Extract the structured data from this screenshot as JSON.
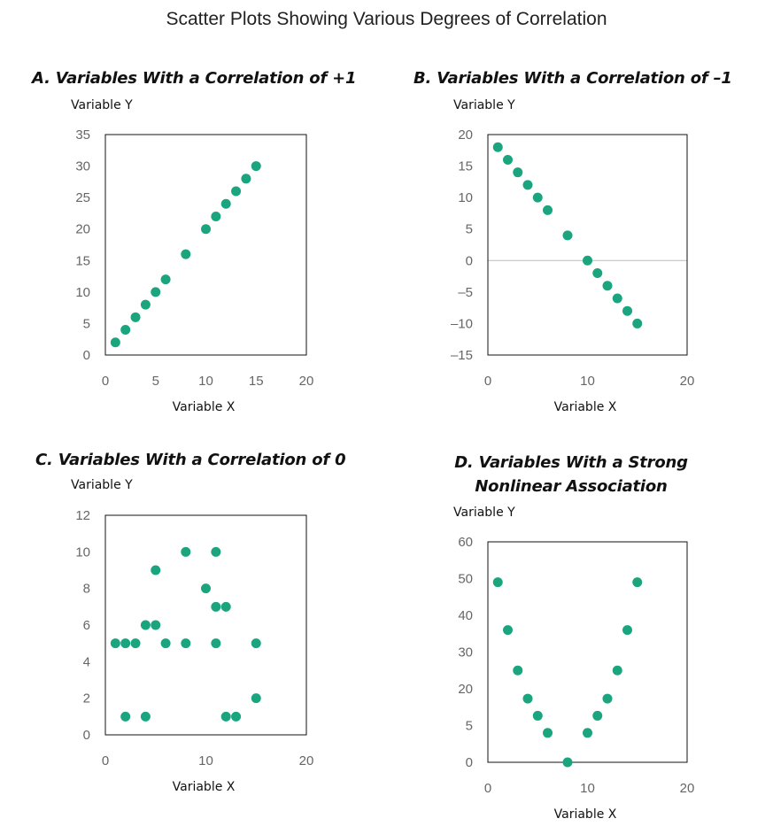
{
  "title": "Scatter Plots Showing Various Degrees of Correlation",
  "colors": {
    "point": "#1aa57f",
    "frame": "#111111",
    "zero_line": "#bbbbbb",
    "tick_text": "#666666"
  },
  "chart_data": [
    {
      "type": "scatter",
      "title": "A. Variables With a Correlation of +1",
      "xlabel": "Variable X",
      "ylabel": "Variable Y",
      "xlim": [
        0,
        20
      ],
      "ylim": [
        0,
        35
      ],
      "xticks": [
        0,
        5,
        10,
        15,
        20
      ],
      "yticks": [
        0,
        5,
        10,
        15,
        20,
        25,
        30,
        35
      ],
      "ytick_labels": [
        "0",
        "5",
        "10",
        "15",
        "20",
        "25",
        "30",
        "35"
      ],
      "x": [
        1,
        2,
        3,
        4,
        5,
        6,
        8,
        10,
        11,
        12,
        13,
        14,
        15
      ],
      "y": [
        2,
        4,
        6,
        8,
        10,
        12,
        16,
        20,
        22,
        24,
        26,
        28,
        30
      ]
    },
    {
      "type": "scatter",
      "title": "B. Variables With a Correlation of –1",
      "xlabel": "Variable X",
      "ylabel": "Variable Y",
      "xlim": [
        0,
        20
      ],
      "ylim": [
        -15,
        20
      ],
      "xticks": [
        0,
        10,
        20
      ],
      "yticks": [
        20,
        15,
        10,
        5,
        0,
        -5,
        -10,
        -15
      ],
      "ytick_labels": [
        "20",
        "15",
        "10",
        "5",
        "0",
        "–5",
        "–10",
        "–15"
      ],
      "zero_line": true,
      "x": [
        1,
        2,
        3,
        4,
        5,
        6,
        8,
        10,
        11,
        12,
        13,
        14,
        15
      ],
      "y": [
        18,
        16,
        14,
        12,
        10,
        8,
        4,
        0,
        -2,
        -4,
        -6,
        -8,
        -10
      ]
    },
    {
      "type": "scatter",
      "title": "C. Variables With a Correlation of 0",
      "xlabel": "Variable X",
      "ylabel": "Variable Y",
      "xlim": [
        0,
        20
      ],
      "ylim": [
        0,
        12
      ],
      "xticks": [
        0,
        10,
        20
      ],
      "yticks": [
        0,
        2,
        4,
        6,
        8,
        10,
        12
      ],
      "ytick_labels": [
        "0",
        "2",
        "4",
        "6",
        "8",
        "10",
        "12"
      ],
      "x": [
        1,
        2,
        3,
        2,
        4,
        4,
        5,
        5,
        6,
        8,
        8,
        10,
        11,
        11,
        11,
        12,
        12,
        13,
        15,
        15
      ],
      "y": [
        5,
        5,
        5,
        1,
        6,
        1,
        9,
        6,
        5,
        10,
        5,
        8,
        10,
        7,
        5,
        7,
        1,
        1,
        5,
        2
      ]
    },
    {
      "type": "scatter",
      "title": "D. Variables With a Strong Nonlinear Association",
      "title_lines": [
        "D. Variables With a Strong",
        "Nonlinear Association"
      ],
      "xlabel": "Variable X",
      "ylabel": "Variable Y",
      "xlim": [
        0,
        20
      ],
      "ylim": [
        0,
        60
      ],
      "xticks": [
        0,
        10,
        20
      ],
      "yticks": [
        0,
        5,
        20,
        30,
        40,
        50,
        60
      ],
      "ytick_labels": [
        "0",
        "5",
        "20",
        "30",
        "40",
        "50",
        "60"
      ],
      "x": [
        1,
        2,
        3,
        4,
        5,
        6,
        8,
        10,
        11,
        12,
        13,
        14,
        15
      ],
      "y": [
        49,
        36,
        25,
        16,
        9,
        4,
        0,
        4,
        9,
        16,
        25,
        36,
        49
      ]
    }
  ]
}
